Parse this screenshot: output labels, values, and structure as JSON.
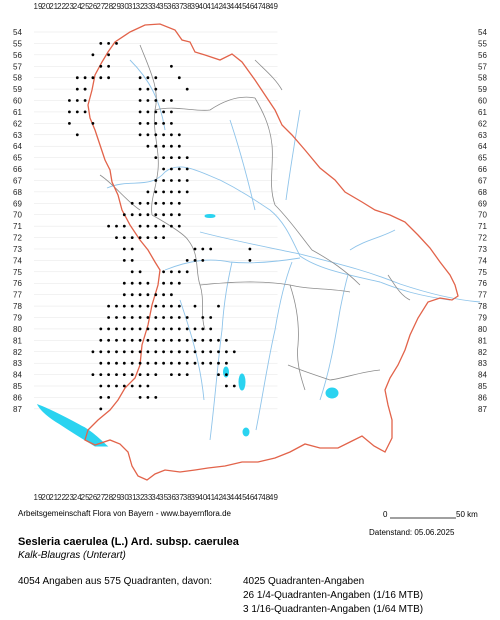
{
  "map": {
    "x_ticks": [
      "19",
      "20",
      "21",
      "22",
      "23",
      "24",
      "25",
      "26",
      "27",
      "28",
      "29",
      "30",
      "31",
      "32",
      "33",
      "34",
      "35",
      "36",
      "37",
      "38",
      "39",
      "40",
      "41",
      "42",
      "43",
      "44",
      "45",
      "46",
      "47",
      "48",
      "49"
    ],
    "y_ticks": [
      "54",
      "55",
      "56",
      "57",
      "58",
      "59",
      "60",
      "61",
      "62",
      "63",
      "64",
      "65",
      "66",
      "67",
      "68",
      "69",
      "70",
      "71",
      "72",
      "73",
      "74",
      "75",
      "76",
      "77",
      "78",
      "79",
      "80",
      "81",
      "82",
      "83",
      "84",
      "85",
      "86",
      "87"
    ],
    "colors": {
      "state_border": "#e2634a",
      "district_border": "#8c8c8c",
      "rivers": "#8fc4ea",
      "lakes": "#2ad3f0",
      "grid": "#e4e4e4",
      "dots": "#000000"
    }
  },
  "footer": {
    "credit": "Arbeitsgemeinschaft Flora von Bayern - www.bayernflora.de",
    "scale_start": "0",
    "scale_end": "50 km",
    "datenstand": "Datenstand: 05.06.2025",
    "title": "Sesleria caerulea (L.) Ard. subsp. caerulea",
    "subtitle": "Kalk-Blaugras (Unterart)",
    "summary": "4054 Angaben aus 575 Quadranten, davon:",
    "quadrant_lines": [
      "4025 Quadranten-Angaben",
      "26 1/4-Quadranten-Angaben (1/16 MTB)",
      "3 1/16-Quadranten-Angaben (1/64 MTB)"
    ]
  }
}
